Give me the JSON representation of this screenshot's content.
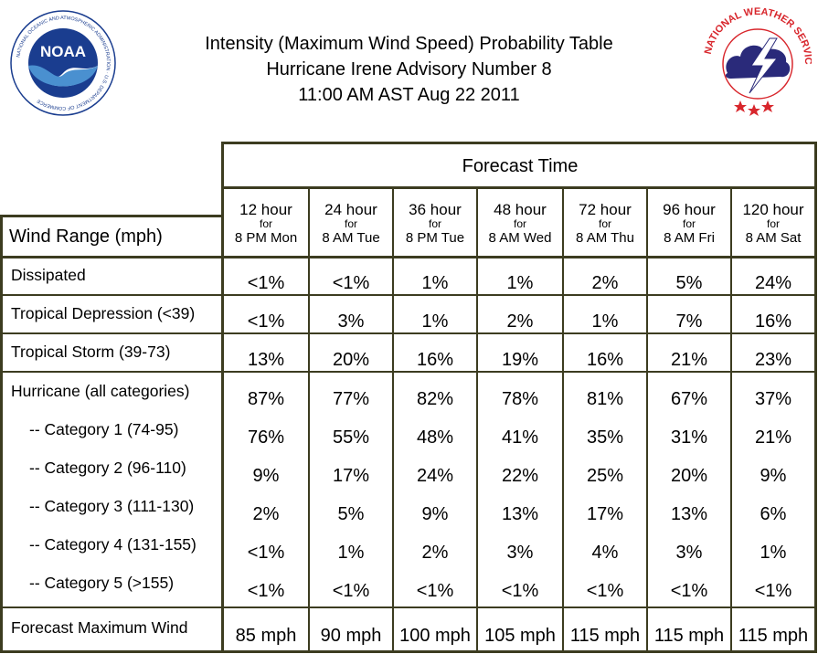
{
  "title": {
    "line1": "Intensity (Maximum Wind Speed) Probability Table",
    "line2": "Hurricane Irene Advisory Number 8",
    "line3": "11:00 AM AST Aug 22 2011"
  },
  "logos": {
    "noaa_text": "NOAA",
    "noaa_ring": "NATIONAL OCEANIC AND ATMOSPHERIC ADMINISTRATION · U.S. DEPARTMENT OF COMMERCE",
    "nws_ring": "NATIONAL WEATHER SERVICE"
  },
  "table": {
    "forecast_time": "Forecast Time",
    "wind_range_header": "Wind Range (mph)",
    "columns": [
      {
        "hour": "12 hour",
        "for": "for",
        "when": "8 PM Mon"
      },
      {
        "hour": "24 hour",
        "for": "for",
        "when": "8 AM Tue"
      },
      {
        "hour": "36 hour",
        "for": "for",
        "when": "8 PM Tue"
      },
      {
        "hour": "48 hour",
        "for": "for",
        "when": "8 AM Wed"
      },
      {
        "hour": "72 hour",
        "for": "for",
        "when": "8 AM Thu"
      },
      {
        "hour": "96 hour",
        "for": "for",
        "when": "8 AM Fri"
      },
      {
        "hour": "120 hour",
        "for": "for",
        "when": "8 AM Sat"
      }
    ],
    "rows": [
      {
        "label": "Dissipated",
        "values": [
          "<1%",
          "<1%",
          "1%",
          "1%",
          "2%",
          "5%",
          "24%"
        ]
      },
      {
        "label": "Tropical Depression (<39)",
        "values": [
          "<1%",
          "3%",
          "1%",
          "2%",
          "1%",
          "7%",
          "16%"
        ]
      },
      {
        "label": "Tropical Storm (39-73)",
        "values": [
          "13%",
          "20%",
          "16%",
          "19%",
          "16%",
          "21%",
          "23%"
        ]
      },
      {
        "label": "Hurricane (all categories)",
        "values": [
          "87%",
          "77%",
          "82%",
          "78%",
          "81%",
          "67%",
          "37%"
        ]
      },
      {
        "label": "-- Category 1 (74-95)",
        "values": [
          "76%",
          "55%",
          "48%",
          "41%",
          "35%",
          "31%",
          "21%"
        ]
      },
      {
        "label": "-- Category 2 (96-110)",
        "values": [
          "9%",
          "17%",
          "24%",
          "22%",
          "25%",
          "20%",
          "9%"
        ]
      },
      {
        "label": "-- Category 3 (111-130)",
        "values": [
          "2%",
          "5%",
          "9%",
          "13%",
          "17%",
          "13%",
          "6%"
        ]
      },
      {
        "label": "-- Category 4 (131-155)",
        "values": [
          "<1%",
          "1%",
          "2%",
          "3%",
          "4%",
          "3%",
          "1%"
        ]
      },
      {
        "label": "-- Category 5 (>155)",
        "values": [
          "<1%",
          "<1%",
          "<1%",
          "<1%",
          "<1%",
          "<1%",
          "<1%"
        ]
      },
      {
        "label": "Forecast Maximum Wind",
        "values": [
          "85 mph",
          "90 mph",
          "100 mph",
          "105 mph",
          "115 mph",
          "115 mph",
          "115 mph"
        ]
      }
    ]
  },
  "colors": {
    "grid": "#3c3c20",
    "noaa_blue": "#1a3d8f",
    "nws_red": "#d8262c"
  }
}
